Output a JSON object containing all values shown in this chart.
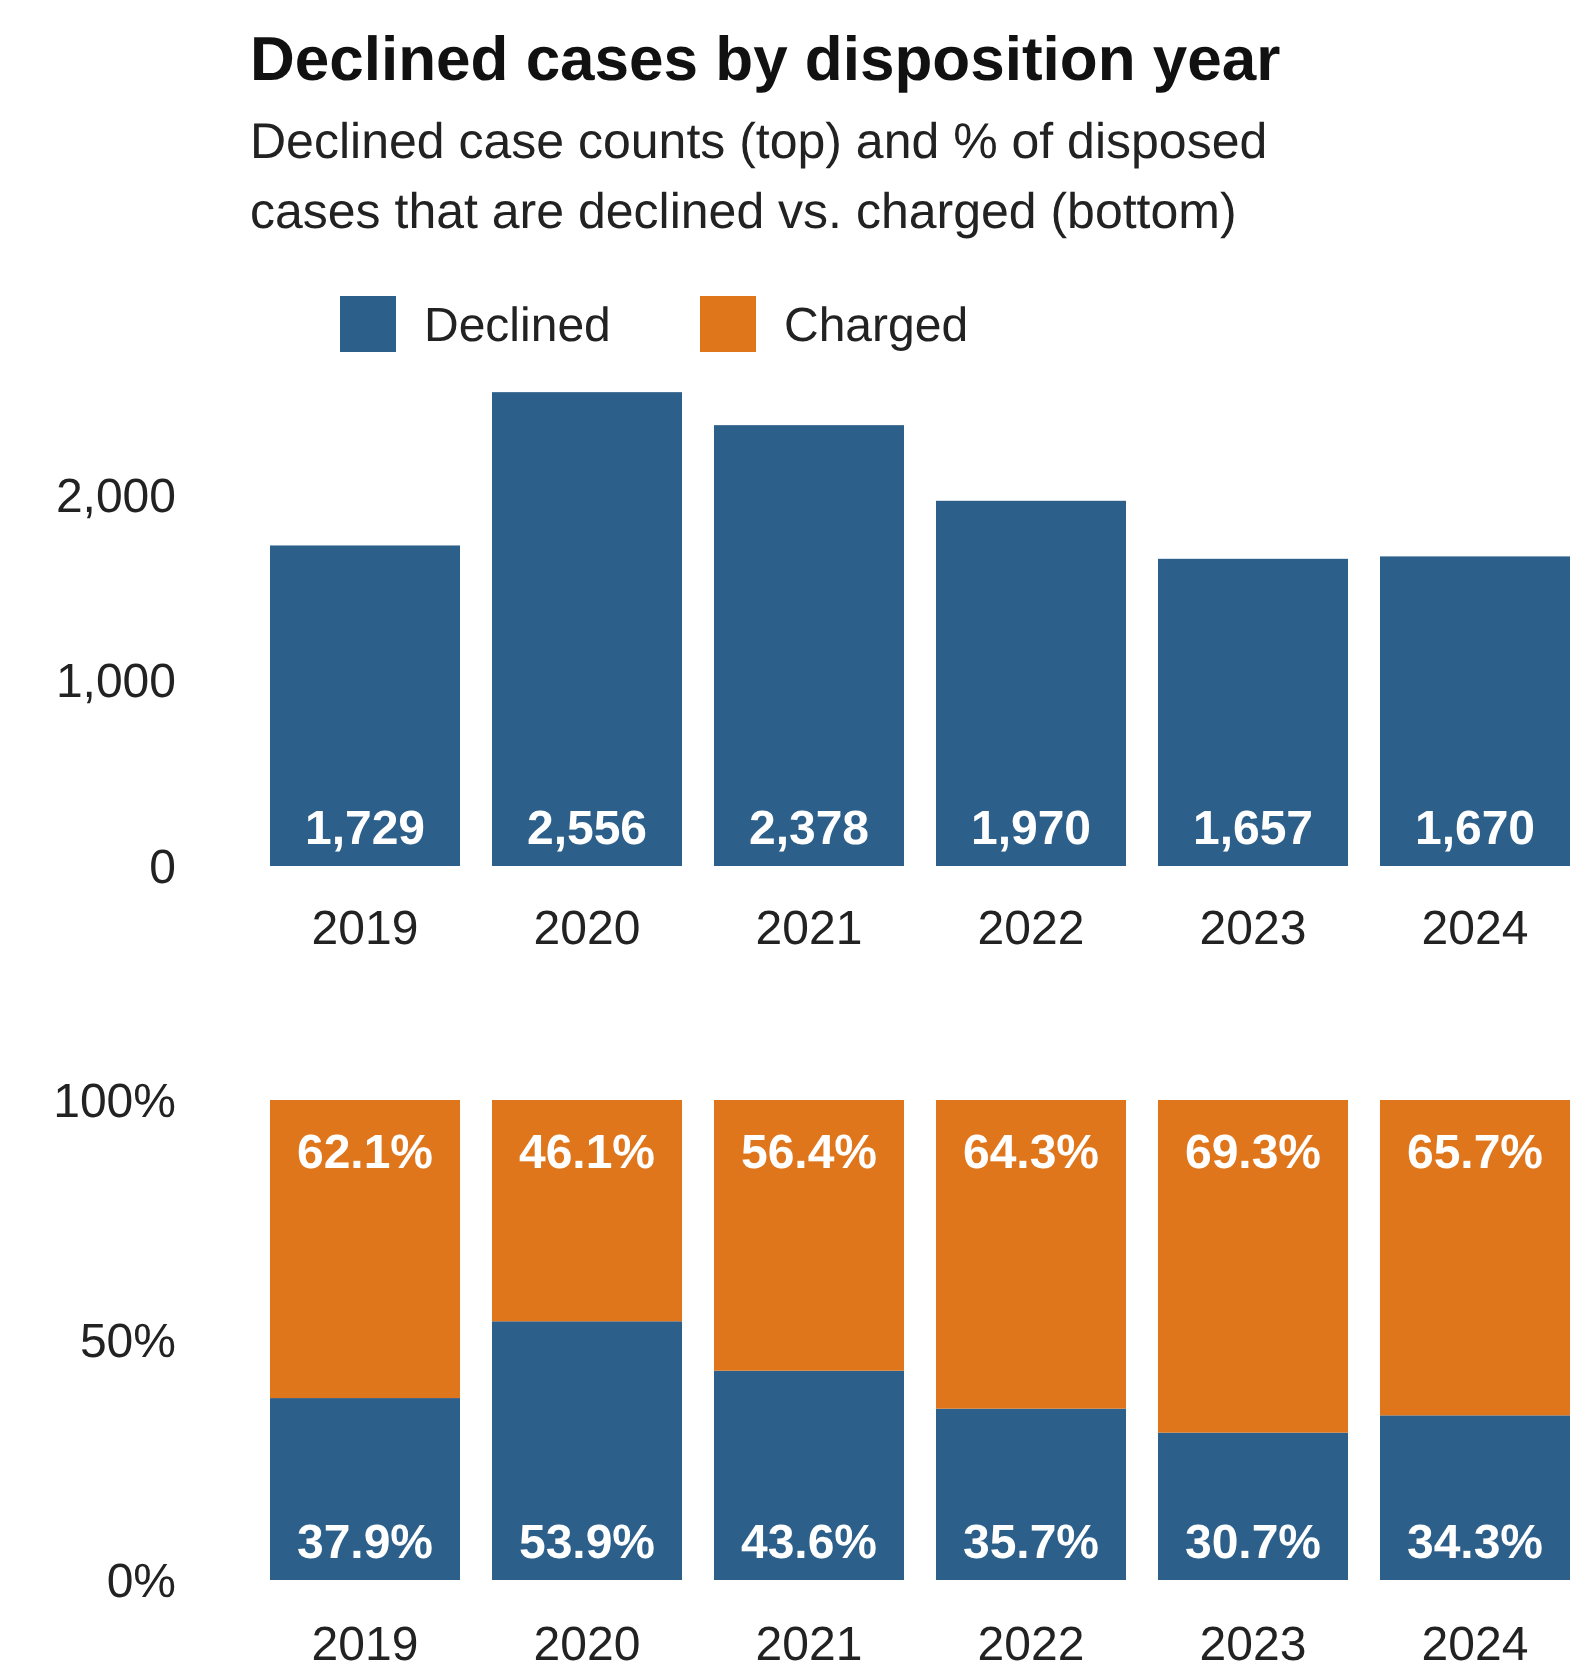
{
  "chart_data": [
    {
      "type": "bar",
      "title": "Declined cases by disposition year",
      "subtitle": "Declined case counts (top) and % of disposed cases that are declined vs. charged (bottom)",
      "categories": [
        "2019",
        "2020",
        "2021",
        "2022",
        "2023",
        "2024"
      ],
      "ylim": [
        0,
        2600
      ],
      "yticks": [
        0,
        {
          "value": 1000,
          "label": "1,000"
        },
        {
          "value": 2000,
          "label": "2,000"
        }
      ],
      "series": [
        {
          "color": "#2c5f8a",
          "values": [
            1729,
            2556,
            2378,
            1970,
            1657,
            1670
          ],
          "value_labels": [
            "1,729",
            "2,556",
            "2,378",
            "1,970",
            "1,657",
            "1,670"
          ]
        }
      ]
    },
    {
      "type": "bar",
      "stacked": true,
      "legend": "top",
      "categories": [
        "2019",
        "2020",
        "2021",
        "2022",
        "2023",
        "2024"
      ],
      "ylim": [
        0,
        100
      ],
      "yticks": [
        {
          "value": 0,
          "label": "0%"
        },
        {
          "value": 50,
          "label": "50%"
        },
        {
          "value": 100,
          "label": "100%"
        }
      ],
      "series": [
        {
          "name": "Declined",
          "color": "#2c5f8a",
          "values": [
            37.9,
            53.9,
            43.6,
            35.7,
            30.7,
            34.3
          ],
          "value_labels": [
            "37.9%",
            "53.9%",
            "43.6%",
            "35.7%",
            "30.7%",
            "34.3%"
          ]
        },
        {
          "name": "Charged",
          "color": "#e0761c",
          "values": [
            62.1,
            46.1,
            56.4,
            64.3,
            69.3,
            65.7
          ],
          "value_labels": [
            "62.1%",
            "46.1%",
            "56.4%",
            "64.3%",
            "69.3%",
            "65.7%"
          ]
        }
      ]
    }
  ]
}
